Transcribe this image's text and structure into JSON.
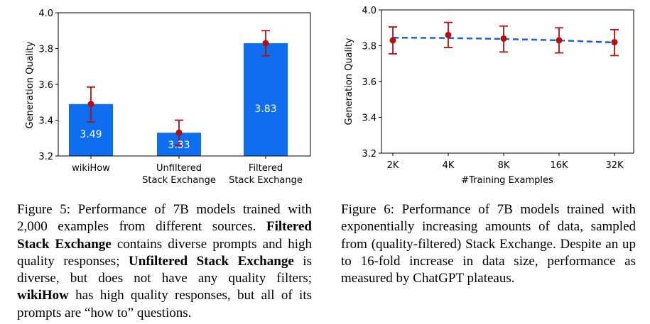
{
  "chart_data": [
    {
      "type": "bar",
      "categories": [
        [
          "wikiHow"
        ],
        [
          "Unfiltered",
          "Stack Exchange"
        ],
        [
          "Filtered",
          "Stack Exchange"
        ]
      ],
      "values": [
        3.49,
        3.33,
        3.83
      ],
      "value_labels": [
        "3.49",
        "3.33",
        "3.83"
      ],
      "error_low": [
        3.39,
        3.26,
        3.76
      ],
      "error_high": [
        3.585,
        3.4,
        3.9
      ],
      "ylabel": "Generation Quality",
      "xlabel": "",
      "ylim": [
        3.2,
        4.0
      ],
      "yticks": [
        3.2,
        3.4,
        3.6,
        3.8,
        4.0
      ],
      "ytick_labels": [
        "3.2",
        "3.4",
        "3.6",
        "3.8",
        "4.0"
      ],
      "colors": {
        "bar": "#0f6ef0",
        "point": "#b30f0f",
        "error": "#b30f0f",
        "value_text": "#ffffff"
      }
    },
    {
      "type": "line",
      "x": [
        "2K",
        "4K",
        "8K",
        "16K",
        "32K"
      ],
      "points": [
        3.83,
        3.86,
        3.84,
        3.83,
        3.82
      ],
      "error_low": [
        3.755,
        3.79,
        3.765,
        3.76,
        3.745
      ],
      "error_high": [
        3.905,
        3.93,
        3.91,
        3.9,
        3.89
      ],
      "trend": [
        3.845,
        3.843,
        3.838,
        3.83,
        3.818
      ],
      "xlabel": "#Training Examples",
      "ylabel": "Generation Quality",
      "ylim": [
        3.2,
        4.0
      ],
      "yticks": [
        3.2,
        3.4,
        3.6,
        3.8,
        4.0
      ],
      "ytick_labels": [
        "3.2",
        "3.4",
        "3.6",
        "3.8",
        "4.0"
      ],
      "colors": {
        "trend": "#1560e8",
        "point": "#b30f0f",
        "error": "#b30f0f"
      }
    }
  ],
  "captions": {
    "fig5": {
      "label": "Figure 5:",
      "t1": " Performance of 7B models trained with 2,000 examples from different sources. ",
      "b1": "Filtered Stack Exchange",
      "t2": " contains diverse prompts and high quality responses; ",
      "b2": "Unfiltered Stack Exchange",
      "t3": " is diverse, but does not have any quality filters; ",
      "b3": "wikiHow",
      "t4": " has high quality responses, but all of its prompts are “how to” questions."
    },
    "fig6": {
      "label": "Figure 6:",
      "text": " Performance of 7B models trained with exponentially increasing amounts of data, sampled from (quality-filtered) Stack Exchange. Despite an up to 16-fold increase in data size, performance as measured by ChatGPT plateaus."
    }
  }
}
